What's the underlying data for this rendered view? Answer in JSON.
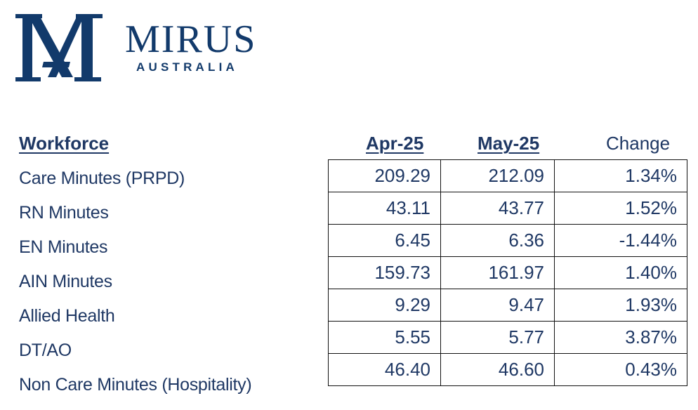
{
  "logo": {
    "name": "MIRUS",
    "subtitle": "AUSTRALIA",
    "color": "#123a6b"
  },
  "table": {
    "header": {
      "section": "Workforce",
      "col1": "Apr-25",
      "col2": "May-25",
      "col3": "Change"
    },
    "rows": [
      {
        "label": "Care Minutes (PRPD)",
        "apr": "209.29",
        "may": "212.09",
        "change": "1.34%"
      },
      {
        "label": "RN Minutes",
        "apr": "43.11",
        "may": "43.77",
        "change": "1.52%"
      },
      {
        "label": "EN Minutes",
        "apr": "6.45",
        "may": "6.36",
        "change": "-1.44%"
      },
      {
        "label": "AIN Minutes",
        "apr": "159.73",
        "may": "161.97",
        "change": "1.40%"
      },
      {
        "label": "Allied Health",
        "apr": "9.29",
        "may": "9.47",
        "change": "1.93%"
      },
      {
        "label": "DT/AO",
        "apr": "5.55",
        "may": "5.77",
        "change": "3.87%"
      },
      {
        "label": "Non Care Minutes (Hospitality)",
        "apr": "46.40",
        "may": "46.60",
        "change": "0.43%"
      }
    ]
  },
  "colors": {
    "text": "#1f3864",
    "border": "#111111"
  }
}
